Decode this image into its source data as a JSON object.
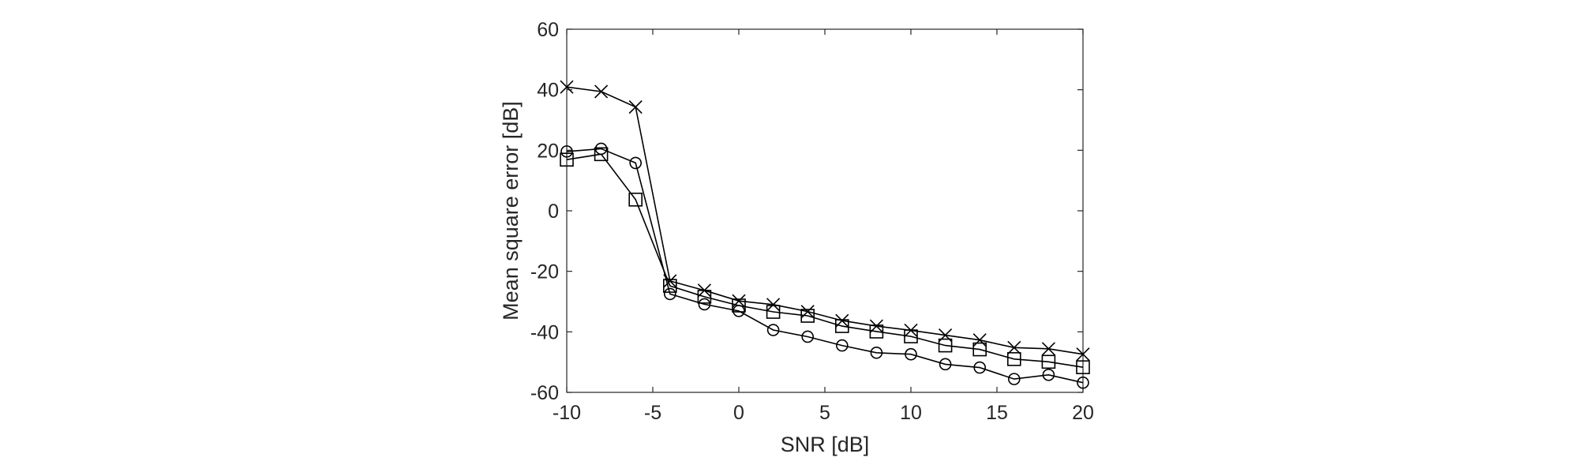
{
  "chart_data": {
    "type": "line",
    "xlabel": "SNR [dB]",
    "ylabel": "Mean square error [dB]",
    "xlim": [
      -10,
      20
    ],
    "ylim": [
      -60,
      60
    ],
    "xticks": [
      -10,
      -5,
      0,
      5,
      10,
      15,
      20
    ],
    "yticks": [
      -60,
      -40,
      -20,
      0,
      20,
      40,
      60
    ],
    "x": [
      -10,
      -8,
      -6,
      -4,
      -2,
      0,
      2,
      4,
      6,
      8,
      10,
      12,
      14,
      16,
      18,
      20
    ],
    "series": [
      {
        "marker": "x",
        "color": "#000000",
        "values": [
          40.9,
          39.4,
          34.3,
          -23.2,
          -26.3,
          -29.8,
          -31.0,
          -33.3,
          -36.3,
          -38.1,
          -39.5,
          -41.1,
          -42.7,
          -45.2,
          -45.6,
          -47.4
        ]
      },
      {
        "marker": "square",
        "color": "#000000",
        "values": [
          16.9,
          18.7,
          3.7,
          -24.8,
          -28.4,
          -31.3,
          -33.4,
          -34.7,
          -38.1,
          -39.9,
          -41.5,
          -44.5,
          -45.8,
          -49.0,
          -49.9,
          -51.7
        ]
      },
      {
        "marker": "circle",
        "color": "#000000",
        "values": [
          19.6,
          20.5,
          15.8,
          -27.5,
          -30.9,
          -33.1,
          -39.4,
          -41.6,
          -44.5,
          -46.9,
          -47.4,
          -50.7,
          -51.8,
          -55.6,
          -54.2,
          -56.8
        ]
      }
    ]
  }
}
